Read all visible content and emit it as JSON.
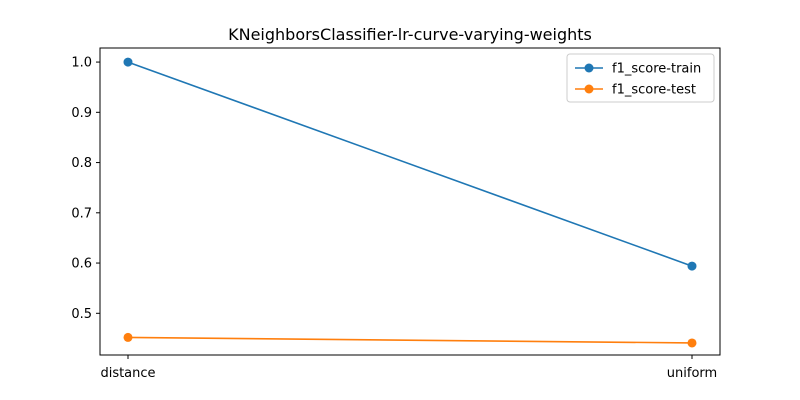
{
  "chart_data": {
    "type": "line",
    "title": "KNeighborsClassifier-lr-curve-varying-weights",
    "xlabel": "",
    "ylabel": "",
    "categories": [
      "distance",
      "uniform"
    ],
    "series": [
      {
        "name": "f1_score-train",
        "values": [
          1.0,
          0.594
        ],
        "color": "#1f77b4",
        "marker": "circle"
      },
      {
        "name": "f1_score-test",
        "values": [
          0.452,
          0.441
        ],
        "color": "#ff7f0e",
        "marker": "circle"
      }
    ],
    "ylim": [
      0.417,
      1.028
    ],
    "yticks": [
      "0.5",
      "0.6",
      "0.7",
      "0.8",
      "0.9",
      "1.0"
    ],
    "legend_position": "top-right",
    "grid": false
  }
}
